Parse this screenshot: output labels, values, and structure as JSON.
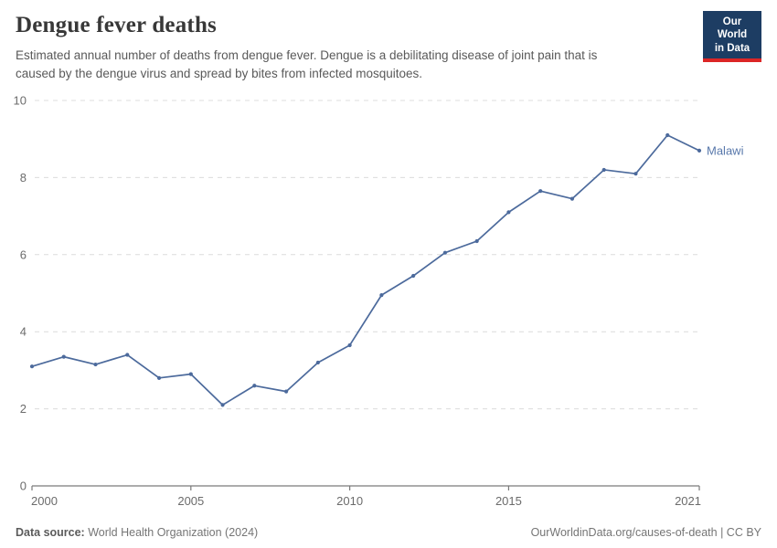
{
  "header": {
    "title": "Dengue fever deaths",
    "subtitle_line1": "Estimated annual number of deaths from dengue fever. Dengue is a debilitating disease of joint pain that is",
    "subtitle_line2": "caused by the dengue virus and spread by bites from infected mosquitoes.",
    "logo_line1": "Our World",
    "logo_line2": "in Data"
  },
  "colors": {
    "line": "#4c6a9c",
    "entity_label": "#5878ab",
    "grid": "#dcdcdc",
    "axis": "#7a7a7a",
    "logo_bg": "#1d3d63",
    "logo_bar": "#dc2626"
  },
  "chart_data": {
    "type": "line",
    "title": "Dengue fever deaths",
    "x": [
      2000,
      2001,
      2002,
      2003,
      2004,
      2005,
      2006,
      2007,
      2008,
      2009,
      2010,
      2011,
      2012,
      2013,
      2014,
      2015,
      2016,
      2017,
      2018,
      2019,
      2020,
      2021
    ],
    "series": [
      {
        "name": "Malawi",
        "values": [
          3.1,
          3.35,
          3.15,
          3.4,
          2.8,
          2.9,
          2.1,
          2.6,
          2.45,
          3.2,
          3.65,
          4.95,
          5.45,
          6.05,
          6.35,
          7.1,
          7.65,
          7.45,
          8.2,
          8.1,
          9.1,
          8.7
        ]
      }
    ],
    "xlabel": "",
    "ylabel": "",
    "xlim": [
      2000,
      2021
    ],
    "ylim": [
      0,
      10
    ],
    "yticks": [
      0,
      2,
      4,
      6,
      8,
      10
    ],
    "xticks": [
      2000,
      2005,
      2010,
      2015,
      2021
    ],
    "grid": true,
    "legend_position": "end-of-line"
  },
  "footer": {
    "source_label": "Data source:",
    "source_value": " World Health Organization (2024)",
    "credit": "OurWorldinData.org/causes-of-death | CC BY"
  }
}
